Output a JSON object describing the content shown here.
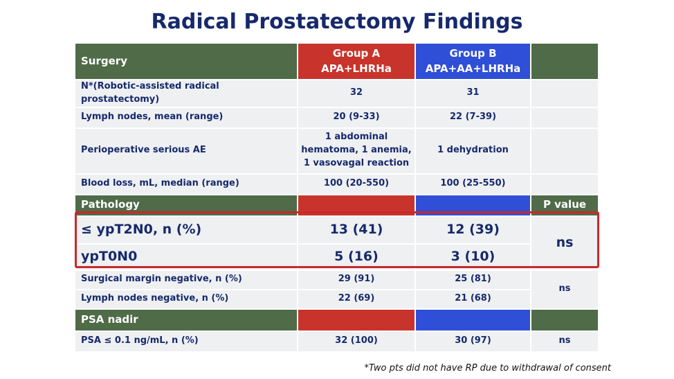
{
  "title": "Radical Prostatectomy Findings",
  "table": {
    "rows": [
      [
        "Surgery",
        [
          "Group A",
          "APA+LHRHa"
        ],
        [
          "Group B",
          "APA+AA+LHRHa"
        ]
      ],
      [
        "N*(Robotic-assisted radical prostatectomy)",
        "32",
        "31"
      ],
      [
        "Lymph nodes, mean (range)",
        "20 (9-33)",
        "22 (7-39)"
      ],
      [
        "Perioperative serious AE",
        "1 abdominal hematoma, 1 anemia, 1 vasovagal reaction",
        "1 dehydration"
      ],
      [
        "Blood loss, mL, median (range)",
        "100 (20-550)",
        "100 (25-550)"
      ],
      [
        "Pathology",
        "",
        "",
        "P value"
      ],
      [
        "≤ ypT2N0, n (%)",
        "13 (41)",
        "12 (39)",
        "ns"
      ],
      [
        "ypT0N0",
        "5 (16)",
        "3 (10)"
      ],
      [
        "Surgical margin negative, n (%)",
        "29 (91)",
        "25 (81)",
        "ns"
      ],
      [
        "Lymph nodes negative, n (%)",
        "22 (69)",
        "21 (68)"
      ],
      [
        "PSA nadir"
      ],
      [
        "PSA ≤ 0.1 ng/mL, n (%)",
        "32 (100)",
        "30 (97)",
        "ns"
      ]
    ]
  },
  "footnote": "*Two pts did not have RP due to withdrawal of consent"
}
